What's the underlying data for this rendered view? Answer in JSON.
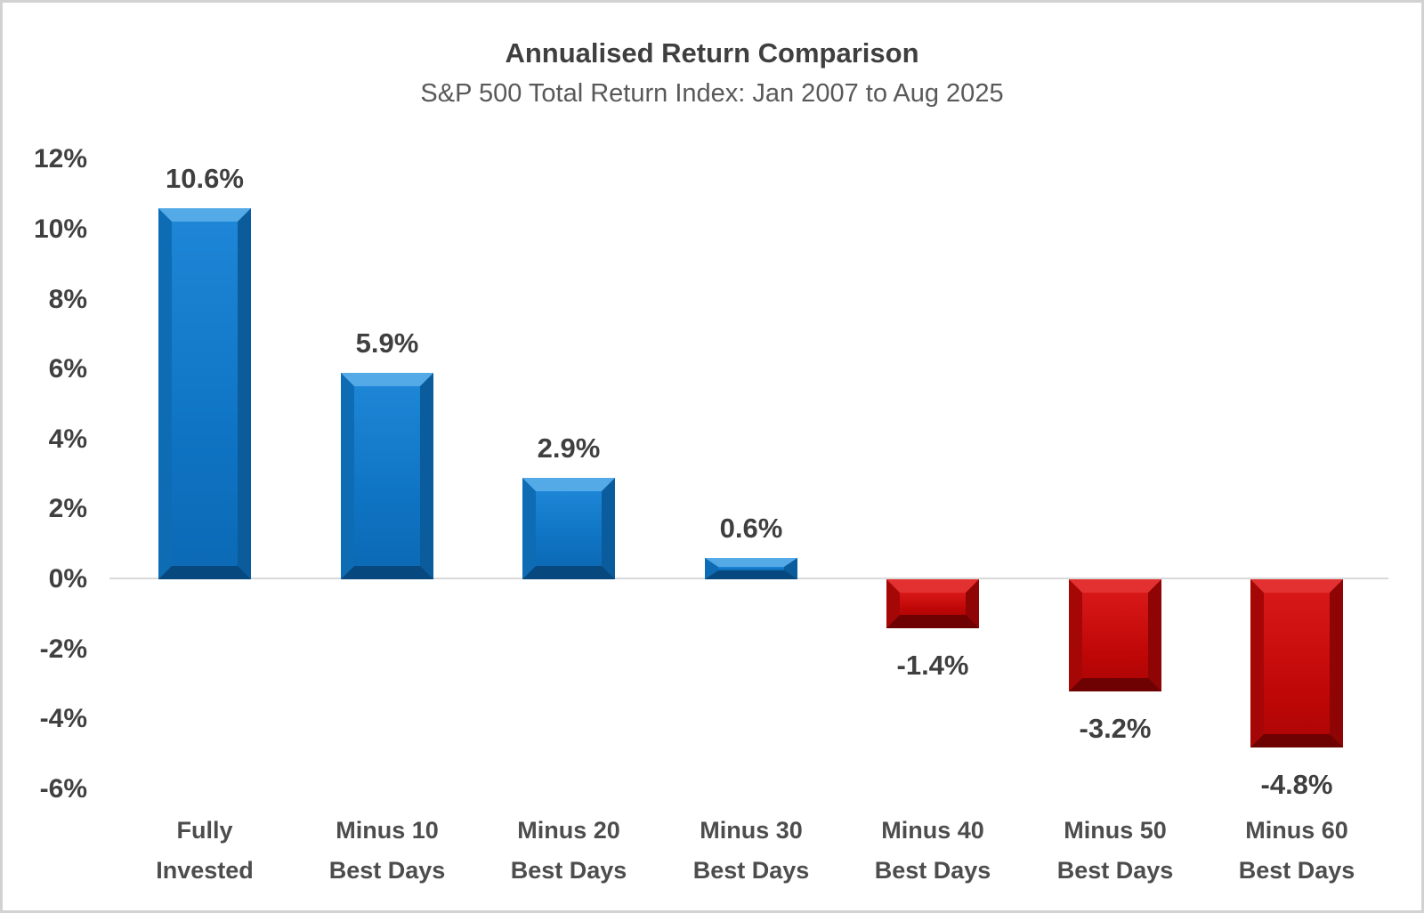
{
  "page": {
    "background": "#ffffff",
    "border_color": "#d2d2d2"
  },
  "chart_data": {
    "type": "bar",
    "title": "Annualised Return Comparison",
    "subtitle": "S&P 500 Total Return Index: Jan 2007 to Aug 2025",
    "categories": [
      [
        "Fully",
        "Invested"
      ],
      [
        "Minus 10",
        "Best Days"
      ],
      [
        "Minus 20",
        "Best Days"
      ],
      [
        "Minus 30",
        "Best Days"
      ],
      [
        "Minus 40",
        "Best Days"
      ],
      [
        "Minus 50",
        "Best Days"
      ],
      [
        "Minus 60",
        "Best Days"
      ]
    ],
    "values": [
      10.6,
      5.9,
      2.9,
      0.6,
      -1.4,
      -3.2,
      -4.8
    ],
    "data_labels": [
      "10.6%",
      "5.9%",
      "2.9%",
      "0.6%",
      "-1.4%",
      "-3.2%",
      "-4.8%"
    ],
    "y_ticks": [
      {
        "value": 12,
        "label": "12%"
      },
      {
        "value": 10,
        "label": "10%"
      },
      {
        "value": 8,
        "label": "8%"
      },
      {
        "value": 6,
        "label": "6%"
      },
      {
        "value": 4,
        "label": "4%"
      },
      {
        "value": 2,
        "label": "2%"
      },
      {
        "value": 0,
        "label": "0%"
      },
      {
        "value": -2,
        "label": "-2%"
      },
      {
        "value": -4,
        "label": "-4%"
      },
      {
        "value": -6,
        "label": "-6%"
      }
    ],
    "ylim": [
      -6,
      12
    ],
    "xlabel": "",
    "ylabel": "",
    "grid": false,
    "legend": false,
    "colors": {
      "positive_bar": "#0F76C8",
      "negative_bar": "#C80B0B",
      "axis_line": "#D9D9D9",
      "title_text": "#3F3F3F",
      "subtitle_text": "#595959",
      "tick_text": "#404040",
      "value_label_text": "#3F3F3F",
      "category_label_text": "#4D4D4D"
    }
  }
}
